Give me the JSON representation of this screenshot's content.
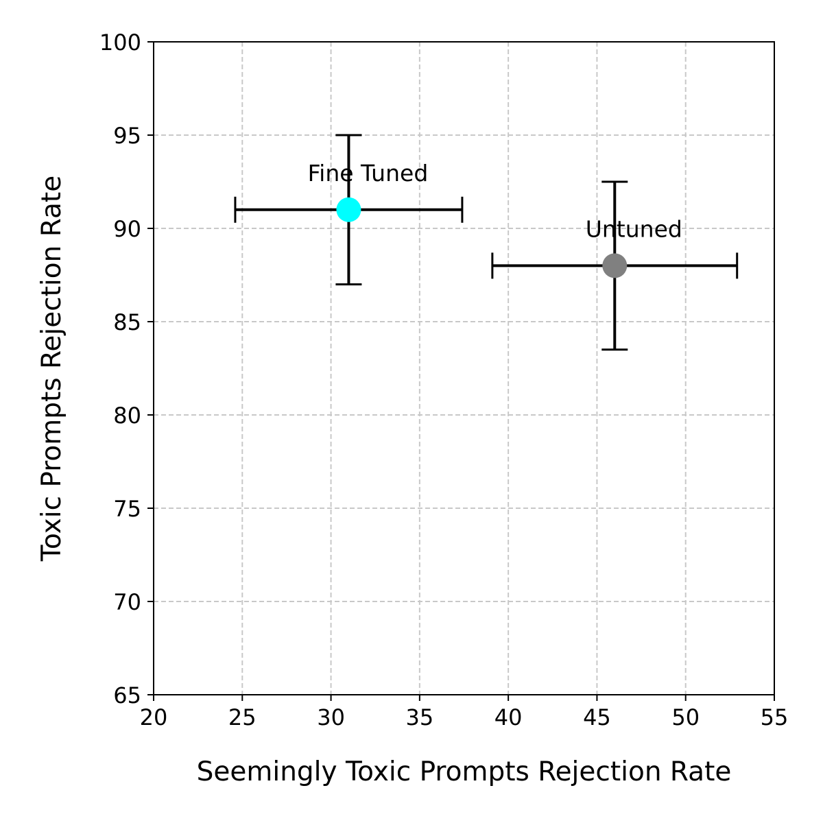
{
  "chart_data": {
    "type": "scatter",
    "title": "",
    "xlabel": "Seemingly Toxic Prompts Rejection Rate",
    "ylabel": "Toxic Prompts Rejection Rate",
    "xlim": [
      20,
      55
    ],
    "ylim": [
      65,
      100
    ],
    "xticks": [
      "20",
      "25",
      "30",
      "35",
      "40",
      "45",
      "50",
      "55"
    ],
    "yticks": [
      "65",
      "70",
      "75",
      "80",
      "85",
      "90",
      "95",
      "100"
    ],
    "grid": true,
    "grid_style": "dashed",
    "points": [
      {
        "label": "Fine Tuned",
        "x": 31,
        "y": 91,
        "xerr": 6.4,
        "yerr": 4,
        "color": "#00ffff"
      },
      {
        "label": "Untuned",
        "x": 46,
        "y": 88,
        "xerr": 6.9,
        "yerr": 4.5,
        "color": "#808080"
      }
    ],
    "errorbar_color": "#000000"
  }
}
